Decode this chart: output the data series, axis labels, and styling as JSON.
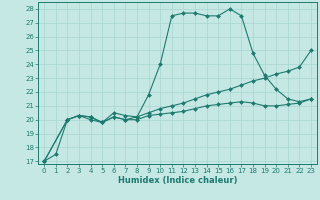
{
  "xlabel": "Humidex (Indice chaleur)",
  "xlim": [
    -0.5,
    23.5
  ],
  "ylim": [
    16.8,
    28.5
  ],
  "yticks": [
    17,
    18,
    19,
    20,
    21,
    22,
    23,
    24,
    25,
    26,
    27,
    28
  ],
  "xticks": [
    0,
    1,
    2,
    3,
    4,
    5,
    6,
    7,
    8,
    9,
    10,
    11,
    12,
    13,
    14,
    15,
    16,
    17,
    18,
    19,
    20,
    21,
    22,
    23
  ],
  "bg_color": "#c5e8e5",
  "grid_color": "#a8d4d0",
  "line_color": "#1e7a6e",
  "lines": [
    {
      "x": [
        0,
        1,
        2,
        3,
        4,
        5,
        6,
        7,
        8,
        9,
        10,
        11,
        12,
        13,
        14,
        15,
        16,
        17,
        18,
        19,
        20,
        21,
        22,
        23
      ],
      "y": [
        17,
        17.5,
        20.0,
        20.3,
        20.2,
        19.8,
        20.5,
        20.3,
        20.2,
        21.8,
        24.0,
        27.5,
        27.7,
        27.7,
        27.5,
        27.5,
        28.0,
        27.5,
        24.8,
        23.2,
        22.2,
        21.5,
        21.3,
        21.5
      ],
      "marker": "D",
      "markersize": 2.0,
      "linewidth": 0.8
    },
    {
      "x": [
        0,
        2,
        3,
        4,
        5,
        6,
        7,
        8,
        9,
        10,
        11,
        12,
        13,
        14,
        15,
        16,
        17,
        18,
        19,
        20,
        21,
        22,
        23
      ],
      "y": [
        17,
        20.0,
        20.3,
        20.0,
        19.8,
        20.2,
        20.0,
        20.2,
        20.5,
        20.8,
        21.0,
        21.2,
        21.5,
        21.8,
        22.0,
        22.2,
        22.5,
        22.8,
        23.0,
        23.3,
        23.5,
        23.8,
        25.0
      ],
      "marker": "D",
      "markersize": 2.0,
      "linewidth": 0.8
    },
    {
      "x": [
        0,
        2,
        3,
        4,
        5,
        6,
        7,
        8,
        9,
        10,
        11,
        12,
        13,
        14,
        15,
        16,
        17,
        18,
        19,
        20,
        21,
        22,
        23
      ],
      "y": [
        17,
        20.0,
        20.3,
        20.2,
        19.8,
        20.2,
        20.0,
        20.0,
        20.3,
        20.4,
        20.5,
        20.6,
        20.8,
        21.0,
        21.1,
        21.2,
        21.3,
        21.2,
        21.0,
        21.0,
        21.1,
        21.2,
        21.5
      ],
      "marker": "D",
      "markersize": 2.0,
      "linewidth": 0.8
    }
  ]
}
